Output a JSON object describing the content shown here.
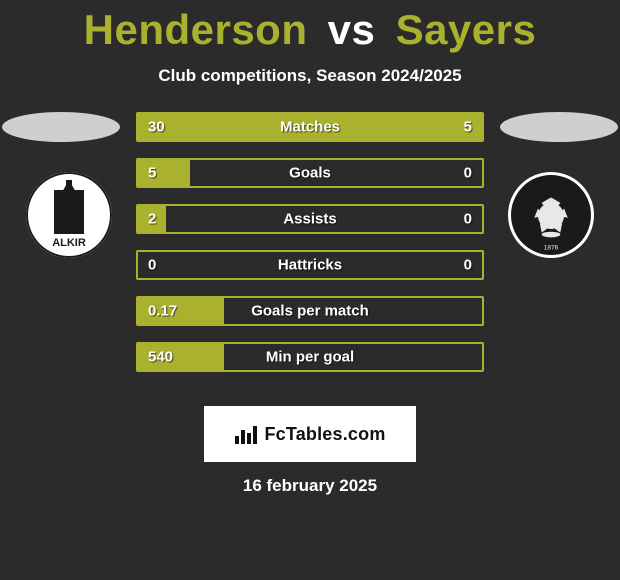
{
  "accent_color": "#aab12f",
  "background_color": "#2b2b2b",
  "title": {
    "player1": "Henderson",
    "vs": "vs",
    "player2": "Sayers",
    "player_color": "#aab12f",
    "vs_color": "#ffffff",
    "fontsize": 42
  },
  "subtitle": "Club competitions, Season 2024/2025",
  "crest_left_name": "falkirk-crest",
  "crest_right_name": "partick-thistle-crest",
  "bars": {
    "bar_bg": "#2b2b2b",
    "bar_fill": "#aab12f",
    "bar_border": "#aab12f",
    "text_color": "#ffffff",
    "label_fontsize": 15,
    "rows": [
      {
        "label": "Matches",
        "left_val": "30",
        "right_val": "5",
        "left_pct": 86,
        "right_pct": 14
      },
      {
        "label": "Goals",
        "left_val": "5",
        "right_val": "0",
        "left_pct": 15,
        "right_pct": 0
      },
      {
        "label": "Assists",
        "left_val": "2",
        "right_val": "0",
        "left_pct": 8,
        "right_pct": 0
      },
      {
        "label": "Hattricks",
        "left_val": "0",
        "right_val": "0",
        "left_pct": 0,
        "right_pct": 0
      },
      {
        "label": "Goals per match",
        "left_val": "0.17",
        "right_val": "",
        "left_pct": 25,
        "right_pct": 0
      },
      {
        "label": "Min per goal",
        "left_val": "540",
        "right_val": "",
        "left_pct": 25,
        "right_pct": 0
      }
    ]
  },
  "branding": {
    "text": "FcTables.com",
    "icon_name": "bar-chart-icon",
    "bg": "#ffffff",
    "text_color": "#111111"
  },
  "date": "16 february 2025"
}
